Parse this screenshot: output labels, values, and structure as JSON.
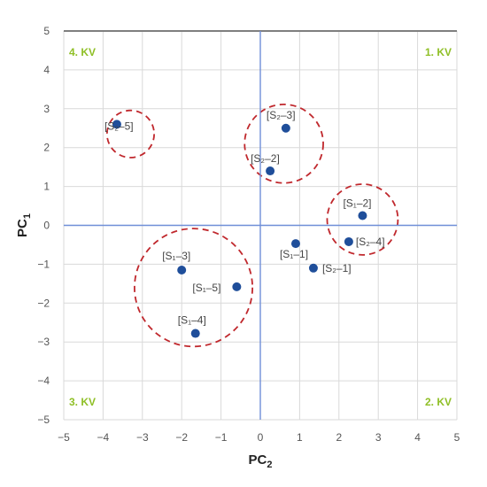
{
  "chart_data": {
    "type": "scatter",
    "xlabel": "PC",
    "xlabel_sub": "2",
    "ylabel": "PC",
    "ylabel_sub": "1",
    "xlim": [
      -5,
      5
    ],
    "ylim": [
      -5,
      5
    ],
    "x_ticks": [
      -5,
      -4,
      -3,
      -2,
      -1,
      0,
      1,
      2,
      3,
      4,
      5
    ],
    "y_ticks": [
      -5,
      -4,
      -3,
      -2,
      -1,
      0,
      1,
      2,
      3,
      4,
      5
    ],
    "grid": true,
    "points": [
      {
        "label": "[S₂–3]",
        "x": 0.65,
        "y": 2.5
      },
      {
        "label": "[S₂–2]",
        "x": 0.25,
        "y": 1.4
      },
      {
        "label": "[S₂–5]",
        "x": -3.65,
        "y": 2.6
      },
      {
        "label": "[S₁–2]",
        "x": 2.6,
        "y": 0.25
      },
      {
        "label": "[S₂–4]",
        "x": 2.25,
        "y": -0.42
      },
      {
        "label": "[S₁–1]",
        "x": 0.9,
        "y": -0.47
      },
      {
        "label": "[S₂–1]",
        "x": 1.35,
        "y": -1.1
      },
      {
        "label": "[S₁–3]",
        "x": -2.0,
        "y": -1.15
      },
      {
        "label": "[S₁–5]",
        "x": -0.6,
        "y": -1.58
      },
      {
        "label": "[S₁–4]",
        "x": -1.65,
        "y": -2.78
      }
    ],
    "clusters": [
      {
        "cx": -3.3,
        "cy": 2.35,
        "r": 0.6
      },
      {
        "cx": 0.6,
        "cy": 2.1,
        "r": 1.0
      },
      {
        "cx": 2.6,
        "cy": 0.15,
        "r": 0.9
      },
      {
        "cx": -1.7,
        "cy": -1.6,
        "r": 1.5
      }
    ],
    "quadrant_labels": [
      {
        "text": "1. KV",
        "corner": "top-right"
      },
      {
        "text": "2. KV",
        "corner": "bottom-right"
      },
      {
        "text": "3. KV",
        "corner": "bottom-left"
      },
      {
        "text": "4. KV",
        "corner": "top-left"
      }
    ],
    "colors": {
      "point": "#1f4e9a",
      "circle": "#c0282d",
      "axis_line": "#6f8fd8",
      "grid": "#d9d9d9",
      "quadrant_text": "#8fbf26",
      "border_top": "#7f7f7f"
    }
  }
}
